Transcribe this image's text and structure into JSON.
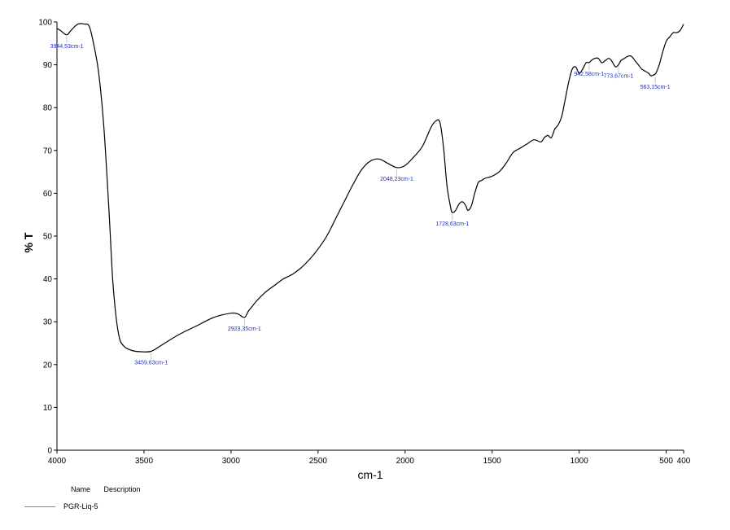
{
  "chart_data": {
    "type": "line",
    "xlabel": "cm-1",
    "ylabel": "% T",
    "xlim": [
      4000,
      400
    ],
    "ylim": [
      0,
      100
    ],
    "x_ticks": [
      4000,
      3500,
      3000,
      2500,
      2000,
      1500,
      1000,
      500,
      400
    ],
    "y_ticks": [
      0,
      10,
      20,
      30,
      40,
      50,
      60,
      70,
      80,
      90,
      100
    ],
    "grid": false,
    "series": [
      {
        "name": "PGR-Liq-5",
        "x": [
          4000,
          3980,
          3944,
          3920,
          3880,
          3840,
          3815,
          3790,
          3760,
          3730,
          3700,
          3680,
          3660,
          3640,
          3620,
          3600,
          3560,
          3520,
          3459,
          3400,
          3300,
          3200,
          3100,
          3000,
          2960,
          2923,
          2900,
          2880,
          2850,
          2800,
          2750,
          2700,
          2650,
          2600,
          2550,
          2500,
          2450,
          2400,
          2350,
          2300,
          2250,
          2200,
          2150,
          2100,
          2048,
          2000,
          1950,
          1900,
          1850,
          1820,
          1800,
          1780,
          1760,
          1740,
          1729,
          1710,
          1690,
          1670,
          1650,
          1640,
          1620,
          1600,
          1580,
          1560,
          1540,
          1500,
          1460,
          1420,
          1380,
          1340,
          1300,
          1260,
          1220,
          1200,
          1180,
          1160,
          1140,
          1120,
          1100,
          1080,
          1060,
          1040,
          1020,
          1000,
          980,
          960,
          943,
          930,
          910,
          890,
          870,
          850,
          830,
          815,
          800,
          790,
          774,
          760,
          740,
          720,
          700,
          680,
          660,
          640,
          620,
          600,
          590,
          580,
          560,
          540,
          520,
          500,
          480,
          460,
          440,
          420,
          400
        ],
        "y": [
          98.5,
          98,
          97,
          98,
          99.5,
          99.5,
          99,
          95,
          88,
          75,
          55,
          40,
          31,
          26,
          24.5,
          23.8,
          23.2,
          23.0,
          23.1,
          24.5,
          27,
          29,
          31,
          32,
          31.8,
          31,
          32.5,
          33.5,
          35,
          37,
          38.5,
          40,
          41,
          42.5,
          44.5,
          47,
          50,
          54,
          58,
          62,
          65.5,
          67.5,
          68,
          67,
          66,
          66.5,
          68.5,
          71,
          75.5,
          77,
          76.5,
          71,
          62,
          57,
          55.5,
          56,
          57.5,
          58,
          57,
          56,
          57,
          60,
          62.5,
          63,
          63.5,
          64,
          65,
          67,
          69.5,
          70.5,
          71.5,
          72.5,
          72,
          73,
          73.5,
          73,
          75,
          76,
          78,
          82,
          86,
          89,
          89.5,
          88,
          89,
          90.5,
          90.5,
          91,
          91.5,
          91.5,
          90.5,
          91,
          91.5,
          91,
          90,
          89.5,
          90,
          91,
          91.5,
          92,
          92,
          91,
          90,
          89,
          88.5,
          88,
          87.5,
          87.5,
          88,
          90,
          93,
          95.5,
          96.5,
          97.5,
          97.5,
          98,
          99.5
        ]
      }
    ],
    "peak_labels": [
      {
        "text": "3944,53cm-1",
        "x": 3944,
        "y": 97
      },
      {
        "text": "3459,63cm-1",
        "x": 3459,
        "y": 23.1
      },
      {
        "text": "2923,35cm-1",
        "x": 2923,
        "y": 31
      },
      {
        "text": "2048,23cm-1",
        "x": 2048,
        "y": 66
      },
      {
        "text": "1728,63cm-1",
        "x": 1729,
        "y": 55.5
      },
      {
        "text": "942,58cm-1",
        "x": 943,
        "y": 90.5
      },
      {
        "text": "773,67cm-1",
        "x": 774,
        "y": 90
      },
      {
        "text": "563,15cm-1",
        "x": 563,
        "y": 87.5
      }
    ],
    "legend": {
      "header": [
        "Name",
        "Description"
      ],
      "entries": [
        {
          "name": "PGR-Liq-5",
          "color": "#888888"
        }
      ]
    },
    "line_color": "#000000",
    "label_color": "#1f2fbf"
  }
}
